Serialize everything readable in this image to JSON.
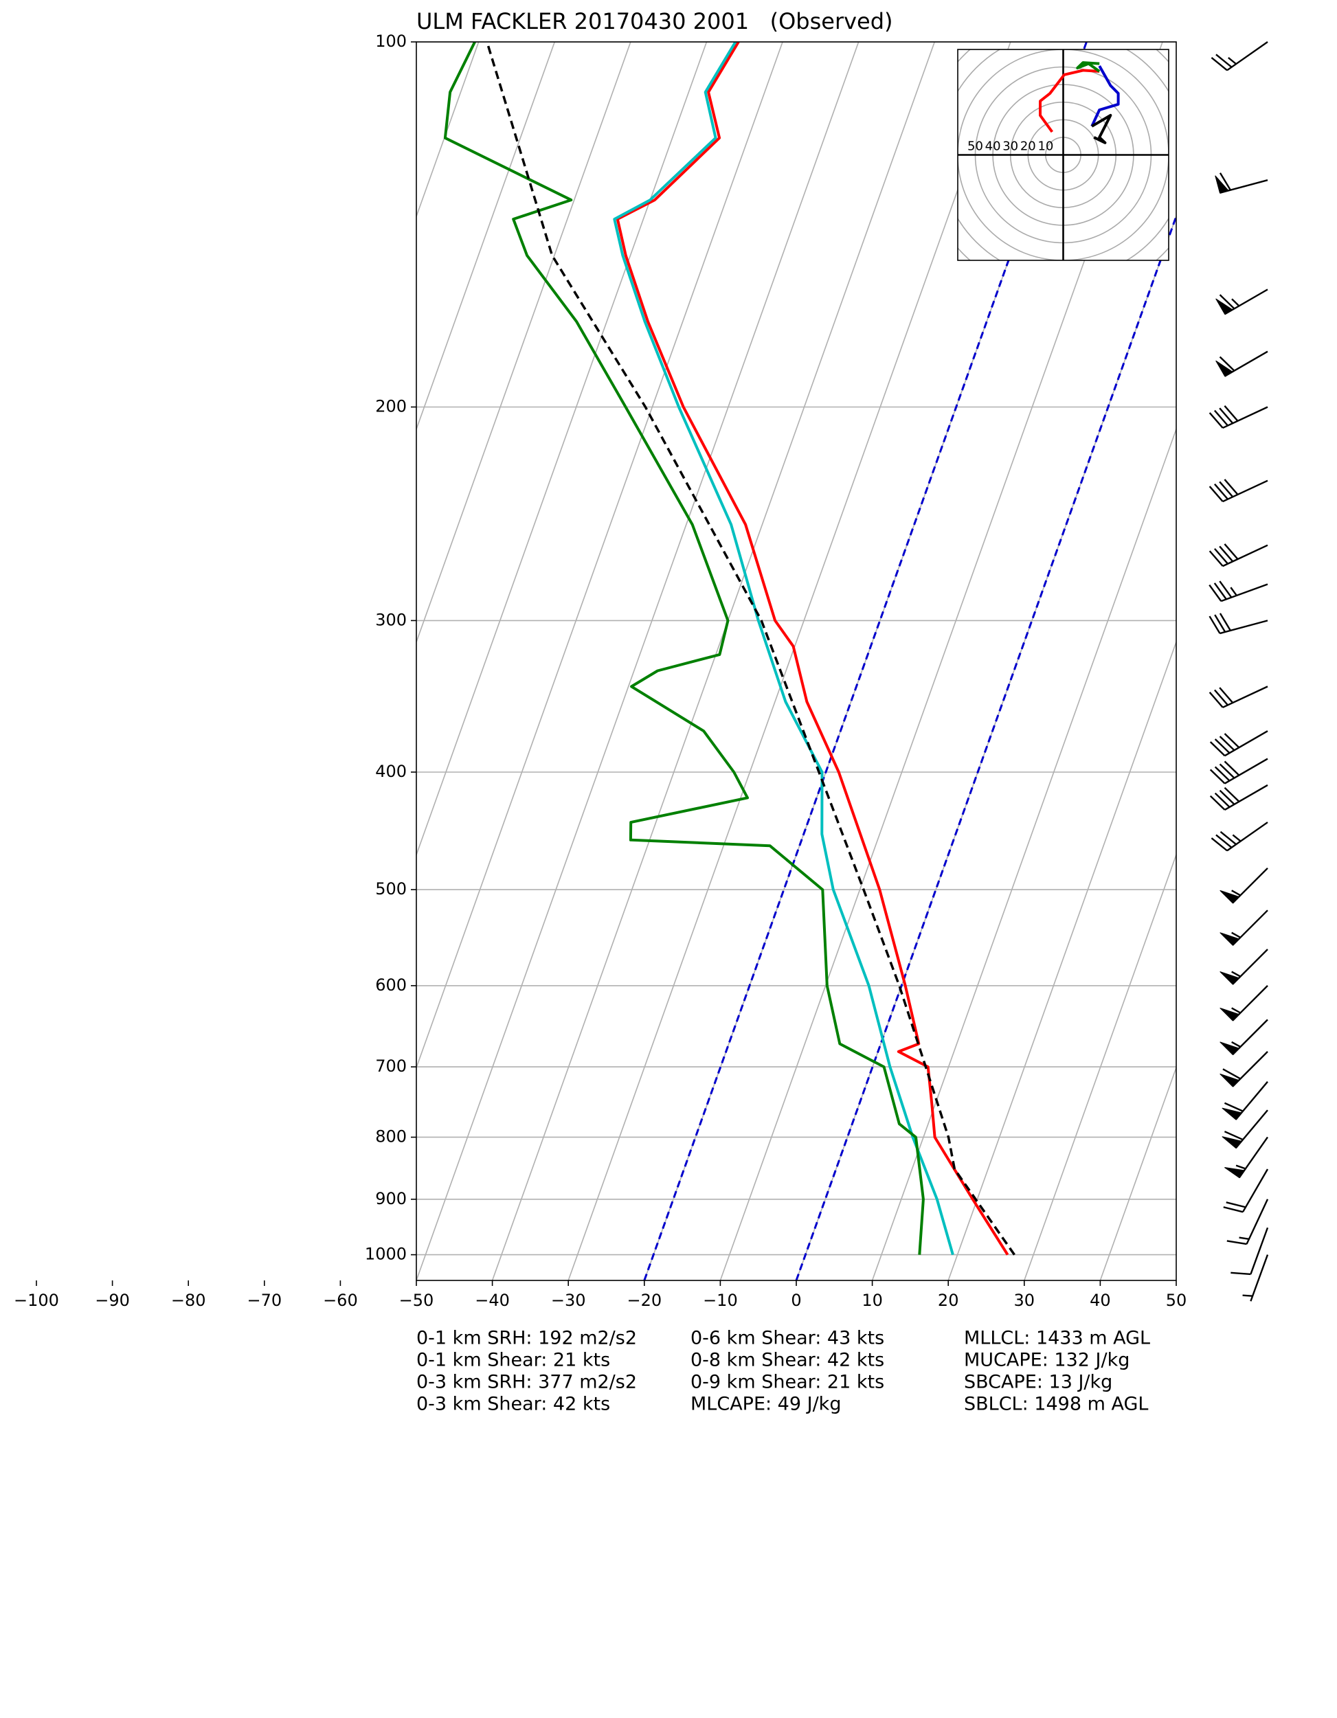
{
  "chart_data": {
    "type": "skewt",
    "title": "ULM FACKLER 20170430 2001   (Observed)",
    "ylim": [
      1050,
      100
    ],
    "yticks": [
      100,
      200,
      300,
      400,
      500,
      600,
      700,
      800,
      900,
      1000
    ],
    "log_y": true,
    "xlim": [
      -50,
      50
    ],
    "xticks": [
      {
        "value": -100,
        "label": "−100"
      },
      {
        "value": -90,
        "label": "−90"
      },
      {
        "value": -80,
        "label": "−80"
      },
      {
        "value": -70,
        "label": "−70"
      },
      {
        "value": -60,
        "label": "−60"
      },
      {
        "value": -50,
        "label": "−50"
      },
      {
        "value": -40,
        "label": "−40"
      },
      {
        "value": -30,
        "label": "−30"
      },
      {
        "value": -20,
        "label": "−20"
      },
      {
        "value": -10,
        "label": "−10"
      },
      0,
      10,
      20,
      30,
      40,
      50
    ],
    "grid": true,
    "highlight_isotherms": {
      "values": [
        -20,
        0
      ],
      "color": "#0000cc"
    },
    "series": [
      {
        "color": "#ff0000",
        "dashed": false,
        "pressure": [
          1000,
          900,
          800,
          750,
          700,
          680,
          670,
          600,
          500,
          400,
          350,
          315,
          300,
          250,
          200,
          170,
          150,
          140,
          135,
          120,
          110,
          100
        ],
        "values": [
          26.6,
          19.4,
          11.5,
          9.5,
          7.3,
          2.7,
          5.0,
          0.5,
          -7.4,
          -18.3,
          -25.8,
          -30.2,
          -33.8,
          -42.2,
          -55.9,
          -64.6,
          -70.6,
          -73.4,
          -69.4,
          -63.8,
          -67.4,
          -65.8
        ]
      },
      {
        "color": "#00bfbf",
        "dashed": false,
        "pressure": [
          1000,
          900,
          800,
          700,
          600,
          500,
          450,
          400,
          350,
          300,
          250,
          200,
          170,
          150,
          140,
          135,
          120,
          110,
          100
        ],
        "values": [
          19.4,
          14.7,
          8.6,
          2.3,
          -4.3,
          -13.5,
          -17.6,
          -20.5,
          -28.6,
          -36.0,
          -44.1,
          -56.5,
          -65.0,
          -71.0,
          -73.8,
          -70.0,
          -64.3,
          -67.8,
          -66.2
        ]
      },
      {
        "color": "#008000",
        "dashed": false,
        "pressure": [
          1000,
          900,
          800,
          780,
          700,
          670,
          600,
          500,
          460,
          455,
          440,
          420,
          400,
          370,
          340,
          330,
          320,
          300,
          250,
          200,
          170,
          150,
          140,
          135,
          120,
          110,
          100
        ],
        "values": [
          15.0,
          12.9,
          9.0,
          6.2,
          1.5,
          -5.4,
          -9.8,
          -14.9,
          -23.9,
          -42.5,
          -43.3,
          -29.1,
          -32.1,
          -38.0,
          -49.6,
          -46.9,
          -39.5,
          -40.0,
          -49.2,
          -63.5,
          -74.0,
          -83.6,
          -87.1,
          -80.4,
          -99.9,
          -101.4,
          -100.5
        ]
      },
      {
        "color": "#000000",
        "dashed": true,
        "pressure": [
          1000,
          850,
          800,
          700,
          600,
          500,
          400,
          300,
          200,
          150,
          100
        ],
        "values": [
          27.5,
          15.6,
          13.3,
          7.0,
          -0.3,
          -9.5,
          -20.9,
          -35.6,
          -60.9,
          -80.3,
          -98.9
        ]
      }
    ],
    "winds": {
      "pressure": [
        100,
        130,
        160,
        180,
        200,
        230,
        260,
        280,
        300,
        340,
        370,
        390,
        410,
        440,
        480,
        520,
        560,
        600,
        640,
        680,
        720,
        760,
        800,
        850,
        900,
        950,
        1000
      ],
      "speed": [
        25,
        60,
        65,
        60,
        40,
        40,
        40,
        35,
        30,
        30,
        40,
        40,
        40,
        35,
        55,
        55,
        55,
        55,
        55,
        60,
        60,
        60,
        55,
        20,
        15,
        10,
        5
      ],
      "direction": [
        235,
        255,
        240,
        240,
        245,
        245,
        245,
        250,
        255,
        245,
        240,
        240,
        240,
        235,
        225,
        225,
        225,
        225,
        225,
        225,
        220,
        220,
        215,
        210,
        205,
        200,
        200
      ]
    },
    "hodograph": {
      "rings": [
        10,
        20,
        30,
        40,
        50,
        60,
        70,
        80
      ],
      "ring_labels": [
        50,
        40,
        30,
        20,
        10
      ],
      "segments": [
        {
          "color": "#ff0000",
          "u": [
            -6.3,
            -13.1,
            -13.1,
            -7.5,
            0.6,
            11.3,
            20.6
          ],
          "v": [
            13.1,
            22.5,
            30.6,
            35.0,
            45.6,
            48.1,
            47.5
          ]
        },
        {
          "color": "#008000",
          "u": [
            20.6,
            14.4,
            8.1,
            11.3,
            20.6
          ],
          "v": [
            47.5,
            51.9,
            49.4,
            52.5,
            51.9
          ]
        },
        {
          "color": "#0000cc",
          "u": [
            20.6,
            26.9,
            31.3,
            31.3,
            20.6,
            16.3
          ],
          "v": [
            50.6,
            39.4,
            35.0,
            28.8,
            25.6,
            16.3
          ]
        },
        {
          "color": "#000000",
          "u": [
            16.3,
            26.9,
            23.8,
            20.6,
            23.8,
            17.5
          ],
          "v": [
            16.3,
            22.5,
            16.3,
            10.0,
            6.9,
            10.0
          ]
        }
      ]
    },
    "stats": [
      [
        "0-1 km SRH: 192 m2/s2",
        "0-1 km Shear: 21 kts",
        "0-3 km SRH: 377 m2/s2",
        "0-3 km Shear: 42 kts"
      ],
      [
        "0-6 km Shear: 43 kts",
        "0-8 km Shear: 42 kts",
        "0-9 km Shear: 21 kts",
        "MLCAPE: 49 J/kg"
      ],
      [
        "MLLCL: 1433 m AGL",
        "MUCAPE: 132 J/kg",
        "SBCAPE: 13 J/kg",
        "SBLCL: 1498 m AGL"
      ]
    ]
  }
}
